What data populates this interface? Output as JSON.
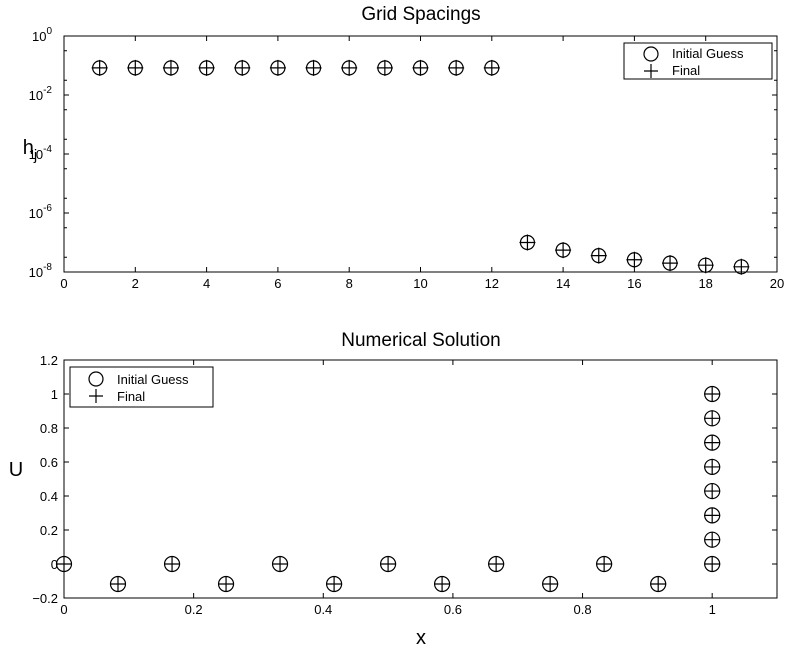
{
  "chart_data": [
    {
      "type": "scatter",
      "title": "Grid Spacings",
      "xlabel": "",
      "ylabel": "h",
      "ylabel_sub": "j",
      "xlim": [
        0,
        20
      ],
      "ylim": [
        1e-08,
        1
      ],
      "yscale": "log",
      "xticks": [
        0,
        2,
        4,
        6,
        8,
        10,
        12,
        14,
        16,
        18,
        20
      ],
      "xtick_labels": [
        "0",
        "2",
        "4",
        "6",
        "8",
        "10",
        "12",
        "14",
        "16",
        "18",
        "20"
      ],
      "yticks": [
        1,
        0.01,
        0.0001,
        1e-06,
        1e-08
      ],
      "ytick_labels": [
        {
          "base": "10",
          "exp": "0"
        },
        {
          "base": "10",
          "exp": "-2"
        },
        {
          "base": "10",
          "exp": "-4"
        },
        {
          "base": "10",
          "exp": "-6"
        },
        {
          "base": "10",
          "exp": "-8"
        }
      ],
      "grid": false,
      "legend_position": "top-right",
      "series": [
        {
          "name": "Initial Guess",
          "marker": "circle",
          "x": [
            1,
            2,
            3,
            4,
            5,
            6,
            7,
            8,
            9,
            10,
            11,
            12,
            13,
            14,
            15,
            16,
            17,
            18,
            19
          ],
          "y": [
            0.0833,
            0.0833,
            0.0833,
            0.0833,
            0.0833,
            0.0833,
            0.0833,
            0.0833,
            0.0833,
            0.0833,
            0.0833,
            0.0833,
            1e-07,
            5.5e-08,
            3.6e-08,
            2.6e-08,
            2e-08,
            1.7e-08,
            1.5e-08
          ]
        },
        {
          "name": "Final",
          "marker": "plus",
          "x": [
            1,
            2,
            3,
            4,
            5,
            6,
            7,
            8,
            9,
            10,
            11,
            12,
            13,
            14,
            15,
            16,
            17,
            18,
            19
          ],
          "y": [
            0.0833,
            0.0833,
            0.0833,
            0.0833,
            0.0833,
            0.0833,
            0.0833,
            0.0833,
            0.0833,
            0.0833,
            0.0833,
            0.0833,
            1e-07,
            5.5e-08,
            3.6e-08,
            2.6e-08,
            2e-08,
            1.7e-08,
            1.5e-08
          ]
        }
      ]
    },
    {
      "type": "scatter",
      "title": "Numerical Solution",
      "xlabel": "x",
      "ylabel": "U",
      "xlim": [
        0,
        1.1
      ],
      "ylim": [
        -0.2,
        1.2
      ],
      "yscale": "linear",
      "xticks": [
        0,
        0.2,
        0.4,
        0.6,
        0.8,
        1
      ],
      "xtick_labels": [
        "0",
        "0.2",
        "0.4",
        "0.6",
        "0.8",
        "1"
      ],
      "yticks": [
        -0.2,
        0,
        0.2,
        0.4,
        0.6,
        0.8,
        1,
        1.2
      ],
      "ytick_labels": [
        "−0.2",
        "0",
        "0.2",
        "0.4",
        "0.6",
        "0.8",
        "1",
        "1.2"
      ],
      "grid": false,
      "legend_position": "top-left",
      "series": [
        {
          "name": "Initial Guess",
          "marker": "circle",
          "x": [
            0,
            0.0833,
            0.1667,
            0.25,
            0.3333,
            0.4167,
            0.5,
            0.5833,
            0.6667,
            0.75,
            0.8333,
            0.9167,
            1,
            1,
            1,
            1,
            1,
            1,
            1,
            1
          ],
          "y": [
            0,
            -0.1178,
            0,
            -0.1178,
            0,
            -0.1178,
            0,
            -0.1178,
            0,
            -0.1178,
            0,
            -0.1178,
            0,
            0.143,
            0.286,
            0.429,
            0.571,
            0.714,
            0.857,
            1
          ]
        },
        {
          "name": "Final",
          "marker": "plus",
          "x": [
            0,
            0.0833,
            0.1667,
            0.25,
            0.3333,
            0.4167,
            0.5,
            0.5833,
            0.6667,
            0.75,
            0.8333,
            0.9167,
            1,
            1,
            1,
            1,
            1,
            1,
            1,
            1
          ],
          "y": [
            0,
            -0.1178,
            0,
            -0.1178,
            0,
            -0.1178,
            0,
            -0.1178,
            0,
            -0.1178,
            0,
            -0.1178,
            0,
            0.143,
            0.286,
            0.429,
            0.571,
            0.714,
            0.857,
            1
          ]
        }
      ]
    }
  ]
}
